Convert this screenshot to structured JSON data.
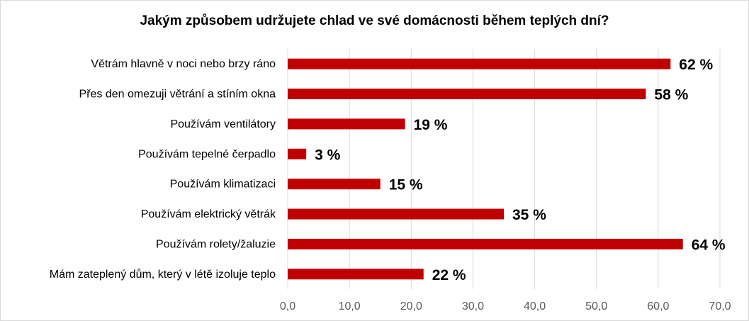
{
  "chart_data": {
    "type": "bar",
    "orientation": "horizontal",
    "title": "Jakým způsobem udržujete chlad ve své domácnosti během teplých dní?",
    "categories": [
      "Větrám hlavně v noci nebo brzy ráno",
      "Přes den omezuji větrání a stíním okna",
      "Používám ventilátory",
      "Používám tepelné čerpadlo",
      "Používám klimatizaci",
      "Používám elektrický větrák",
      "Používám rolety/žaluzie",
      "Mám zateplený dům, který v létě izoluje teplo"
    ],
    "values": [
      62,
      58,
      19,
      3,
      15,
      35,
      64,
      22
    ],
    "data_labels": [
      "62 %",
      "58 %",
      "19 %",
      "3 %",
      "15 %",
      "35 %",
      "64 %",
      "22 %"
    ],
    "xlim": [
      0,
      70
    ],
    "x_ticks": [
      0,
      10,
      20,
      30,
      40,
      50,
      60,
      70
    ],
    "x_tick_labels": [
      "0,0",
      "10,0",
      "20,0",
      "30,0",
      "40,0",
      "50,0",
      "60,0",
      "70,0"
    ],
    "grid": true,
    "legend": "none",
    "bar_color": "#c00000",
    "grid_color": "#d9d9d9"
  }
}
